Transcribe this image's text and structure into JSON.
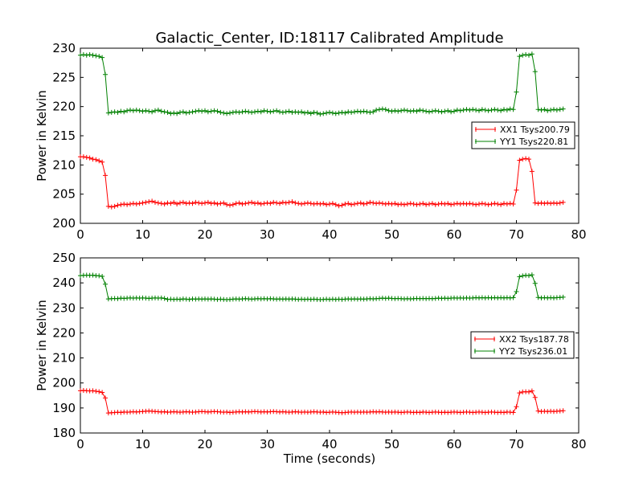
{
  "title": "Galactic_Center, ID:18117 Calibrated Amplitude",
  "colors": {
    "red": "#ff0000",
    "green": "#008000"
  },
  "chart_data": [
    {
      "type": "line",
      "ylabel": "Power in Kelvin",
      "xlabel": "",
      "xlim": [
        0,
        80
      ],
      "ylim": [
        200,
        230
      ],
      "xticks": [
        0,
        10,
        20,
        30,
        40,
        50,
        60,
        70,
        80
      ],
      "yticks": [
        200,
        205,
        210,
        215,
        220,
        225,
        230
      ],
      "legend_position": "center-right",
      "series": [
        {
          "name": "XX1 Tsys200.79",
          "color": "#ff0000",
          "marker": "+",
          "x_start": 0,
          "x_step": 0.5,
          "y": [
            211.4,
            211.4,
            211.3,
            211.2,
            211.0,
            210.9,
            210.7,
            210.5,
            208.2,
            202.9,
            202.8,
            202.9,
            203.1,
            203.2,
            203.3,
            203.2,
            203.3,
            203.4,
            203.3,
            203.4,
            203.5,
            203.6,
            203.7,
            203.8,
            203.6,
            203.5,
            203.4,
            203.3,
            203.5,
            203.4,
            203.6,
            203.3,
            203.5,
            203.6,
            203.4,
            203.5,
            203.4,
            203.6,
            203.5,
            203.4,
            203.5,
            203.6,
            203.4,
            203.5,
            203.3,
            203.4,
            203.5,
            203.2,
            203.1,
            203.2,
            203.4,
            203.5,
            203.3,
            203.4,
            203.5,
            203.6,
            203.4,
            203.5,
            203.3,
            203.4,
            203.5,
            203.4,
            203.6,
            203.5,
            203.4,
            203.6,
            203.5,
            203.6,
            203.7,
            203.5,
            203.4,
            203.3,
            203.4,
            203.5,
            203.4,
            203.3,
            203.4,
            203.3,
            203.4,
            203.2,
            203.3,
            203.4,
            203.2,
            203.0,
            203.1,
            203.3,
            203.4,
            203.2,
            203.3,
            203.4,
            203.5,
            203.3,
            203.4,
            203.6,
            203.5,
            203.4,
            203.5,
            203.4,
            203.3,
            203.4,
            203.3,
            203.4,
            203.2,
            203.3,
            203.2,
            203.3,
            203.4,
            203.3,
            203.2,
            203.3,
            203.4,
            203.2,
            203.3,
            203.4,
            203.2,
            203.3,
            203.4,
            203.3,
            203.4,
            203.2,
            203.3,
            203.4,
            203.3,
            203.4,
            203.3,
            203.4,
            203.3,
            203.2,
            203.3,
            203.4,
            203.3,
            203.2,
            203.3,
            203.4,
            203.3,
            203.2,
            203.4,
            203.3,
            203.4,
            203.3,
            205.7,
            210.8,
            211.0,
            211.1,
            211.0,
            208.9,
            203.5,
            203.4,
            203.5,
            203.4,
            203.5,
            203.4,
            203.5,
            203.4,
            203.5,
            203.6
          ]
        },
        {
          "name": "YY1 Tsys220.81",
          "color": "#008000",
          "marker": "+",
          "x_start": 0,
          "x_step": 0.5,
          "y": [
            228.8,
            228.9,
            228.8,
            228.9,
            228.8,
            228.7,
            228.6,
            228.4,
            225.5,
            218.9,
            219.0,
            219.1,
            219.0,
            219.2,
            219.1,
            219.3,
            219.4,
            219.3,
            219.4,
            219.3,
            219.2,
            219.3,
            219.2,
            219.1,
            219.3,
            219.4,
            219.2,
            219.1,
            219.0,
            218.8,
            218.9,
            218.8,
            219.0,
            219.1,
            218.9,
            219.0,
            219.1,
            219.2,
            219.3,
            219.2,
            219.3,
            219.1,
            219.2,
            219.3,
            219.2,
            219.0,
            218.9,
            218.8,
            218.9,
            219.0,
            219.1,
            219.0,
            219.1,
            219.2,
            219.1,
            219.0,
            219.1,
            219.2,
            219.1,
            219.3,
            219.2,
            219.1,
            219.2,
            219.3,
            219.1,
            219.0,
            219.1,
            219.2,
            219.0,
            219.1,
            219.0,
            219.1,
            218.9,
            219.0,
            218.8,
            219.0,
            218.9,
            218.7,
            218.8,
            218.9,
            219.0,
            218.9,
            218.8,
            218.9,
            219.0,
            218.9,
            219.1,
            219.0,
            219.1,
            219.2,
            219.1,
            219.2,
            219.1,
            219.0,
            219.1,
            219.4,
            219.5,
            219.6,
            219.5,
            219.3,
            219.2,
            219.3,
            219.2,
            219.3,
            219.4,
            219.3,
            219.2,
            219.3,
            219.2,
            219.4,
            219.3,
            219.2,
            219.1,
            219.2,
            219.3,
            219.2,
            219.1,
            219.2,
            219.3,
            219.1,
            219.2,
            219.4,
            219.3,
            219.4,
            219.5,
            219.4,
            219.5,
            219.4,
            219.3,
            219.5,
            219.4,
            219.3,
            219.4,
            219.5,
            219.4,
            219.3,
            219.5,
            219.4,
            219.6,
            219.5,
            222.5,
            228.6,
            228.8,
            228.9,
            228.8,
            229.0,
            226.0,
            219.5,
            219.4,
            219.5,
            219.3,
            219.4,
            219.5,
            219.4,
            219.5,
            219.6
          ]
        }
      ]
    },
    {
      "type": "line",
      "ylabel": "Power in Kelvin",
      "xlabel": "Time (seconds)",
      "xlim": [
        0,
        80
      ],
      "ylim": [
        180,
        250
      ],
      "xticks": [
        0,
        10,
        20,
        30,
        40,
        50,
        60,
        70,
        80
      ],
      "yticks": [
        180,
        190,
        200,
        210,
        220,
        230,
        240,
        250
      ],
      "legend_position": "center-right",
      "series": [
        {
          "name": "XX2 Tsys187.78",
          "color": "#ff0000",
          "marker": "+",
          "x_start": 0,
          "x_step": 0.5,
          "y": [
            196.9,
            197.0,
            196.9,
            196.8,
            196.9,
            196.7,
            196.5,
            196.2,
            194.0,
            188.0,
            188.1,
            188.2,
            188.3,
            188.2,
            188.4,
            188.3,
            188.4,
            188.5,
            188.4,
            188.5,
            188.6,
            188.7,
            188.8,
            188.7,
            188.6,
            188.5,
            188.4,
            188.5,
            188.3,
            188.4,
            188.5,
            188.4,
            188.3,
            188.4,
            188.5,
            188.4,
            188.3,
            188.4,
            188.5,
            188.6,
            188.5,
            188.4,
            188.5,
            188.6,
            188.5,
            188.4,
            188.3,
            188.4,
            188.2,
            188.3,
            188.4,
            188.5,
            188.4,
            188.5,
            188.4,
            188.5,
            188.6,
            188.5,
            188.4,
            188.5,
            188.4,
            188.5,
            188.6,
            188.5,
            188.4,
            188.5,
            188.4,
            188.3,
            188.4,
            188.5,
            188.4,
            188.3,
            188.4,
            188.3,
            188.4,
            188.5,
            188.4,
            188.3,
            188.4,
            188.2,
            188.3,
            188.4,
            188.3,
            188.2,
            188.1,
            188.2,
            188.3,
            188.4,
            188.3,
            188.4,
            188.3,
            188.4,
            188.3,
            188.4,
            188.5,
            188.4,
            188.5,
            188.4,
            188.3,
            188.4,
            188.3,
            188.4,
            188.3,
            188.2,
            188.3,
            188.4,
            188.3,
            188.2,
            188.3,
            188.2,
            188.4,
            188.3,
            188.2,
            188.3,
            188.4,
            188.3,
            188.2,
            188.3,
            188.2,
            188.3,
            188.4,
            188.3,
            188.2,
            188.3,
            188.4,
            188.3,
            188.2,
            188.3,
            188.4,
            188.3,
            188.2,
            188.3,
            188.4,
            188.3,
            188.2,
            188.3,
            188.2,
            188.4,
            188.3,
            188.2,
            190.5,
            196.0,
            196.4,
            196.5,
            196.4,
            196.8,
            194.2,
            188.8,
            188.6,
            188.7,
            188.6,
            188.7,
            188.6,
            188.7,
            188.8,
            188.9
          ]
        },
        {
          "name": "YY2 Tsys236.01",
          "color": "#008000",
          "marker": "+",
          "x_start": 0,
          "x_step": 0.5,
          "y": [
            242.9,
            243.0,
            243.1,
            243.0,
            243.1,
            242.9,
            242.8,
            242.6,
            239.5,
            233.6,
            233.7,
            233.8,
            233.7,
            233.9,
            233.8,
            233.9,
            234.0,
            233.9,
            234.0,
            233.9,
            234.0,
            233.9,
            233.8,
            233.9,
            234.0,
            233.9,
            234.0,
            233.8,
            233.4,
            233.5,
            233.4,
            233.5,
            233.4,
            233.6,
            233.5,
            233.4,
            233.6,
            233.5,
            233.6,
            233.5,
            233.6,
            233.5,
            233.6,
            233.5,
            233.4,
            233.5,
            233.4,
            233.3,
            233.4,
            233.5,
            233.6,
            233.5,
            233.6,
            233.7,
            233.6,
            233.5,
            233.6,
            233.7,
            233.6,
            233.7,
            233.6,
            233.7,
            233.6,
            233.5,
            233.6,
            233.5,
            233.6,
            233.5,
            233.6,
            233.5,
            233.4,
            233.5,
            233.4,
            233.5,
            233.4,
            233.5,
            233.4,
            233.3,
            233.4,
            233.5,
            233.4,
            233.5,
            233.4,
            233.5,
            233.4,
            233.5,
            233.6,
            233.5,
            233.6,
            233.5,
            233.6,
            233.5,
            233.6,
            233.7,
            233.6,
            233.7,
            233.8,
            233.9,
            233.8,
            233.9,
            233.8,
            233.7,
            233.8,
            233.7,
            233.6,
            233.7,
            233.6,
            233.7,
            233.8,
            233.7,
            233.8,
            233.7,
            233.8,
            233.7,
            233.8,
            233.9,
            233.8,
            233.9,
            233.8,
            233.9,
            234.0,
            233.9,
            234.0,
            233.9,
            234.0,
            233.9,
            234.0,
            234.1,
            234.0,
            234.1,
            234.0,
            234.1,
            234.0,
            234.1,
            234.0,
            234.1,
            234.0,
            234.1,
            234.0,
            234.1,
            236.5,
            242.5,
            242.8,
            243.0,
            242.9,
            243.2,
            239.8,
            234.2,
            234.0,
            234.1,
            234.0,
            234.1,
            234.0,
            234.1,
            234.2,
            234.3
          ]
        }
      ]
    }
  ]
}
